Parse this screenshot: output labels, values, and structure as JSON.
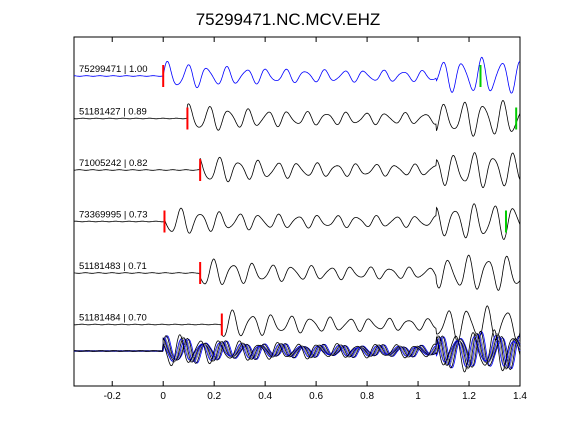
{
  "chart_data": {
    "type": "line",
    "title": "75299471.NC.MCV.EHZ",
    "xlabel": "",
    "ylabel": "",
    "xlim": [
      -0.35,
      1.4
    ],
    "xticks": [
      "-0.2",
      "0",
      "0.2",
      "0.4",
      "0.6",
      "0.8",
      "1",
      "1.2",
      "1.4"
    ],
    "grid": false,
    "series": [
      {
        "name": "75299471 | 1.00",
        "color": "#0000ff",
        "picks": [
          {
            "x": 0.0,
            "color": "#ff0000"
          },
          {
            "x": 1.245,
            "color": "#00cc00"
          }
        ]
      },
      {
        "name": "51181427 | 0.89",
        "color": "#000000",
        "picks": [
          {
            "x": 0.095,
            "color": "#ff0000"
          },
          {
            "x": 1.385,
            "color": "#00cc00"
          }
        ]
      },
      {
        "name": "71005242 | 0.82",
        "color": "#000000",
        "picks": [
          {
            "x": 0.145,
            "color": "#ff0000"
          }
        ]
      },
      {
        "name": "73369995 | 0.73",
        "color": "#000000",
        "picks": [
          {
            "x": 0.005,
            "color": "#ff0000"
          },
          {
            "x": 1.345,
            "color": "#00cc00"
          }
        ]
      },
      {
        "name": "51181483 | 0.71",
        "color": "#000000",
        "picks": [
          {
            "x": 0.145,
            "color": "#ff0000"
          }
        ]
      },
      {
        "name": "51181484 | 0.70",
        "color": "#000000",
        "picks": [
          {
            "x": 0.23,
            "color": "#ff0000"
          }
        ]
      }
    ],
    "stack": {
      "colors": [
        "#0000ff",
        "#000000",
        "#808080"
      ]
    }
  }
}
